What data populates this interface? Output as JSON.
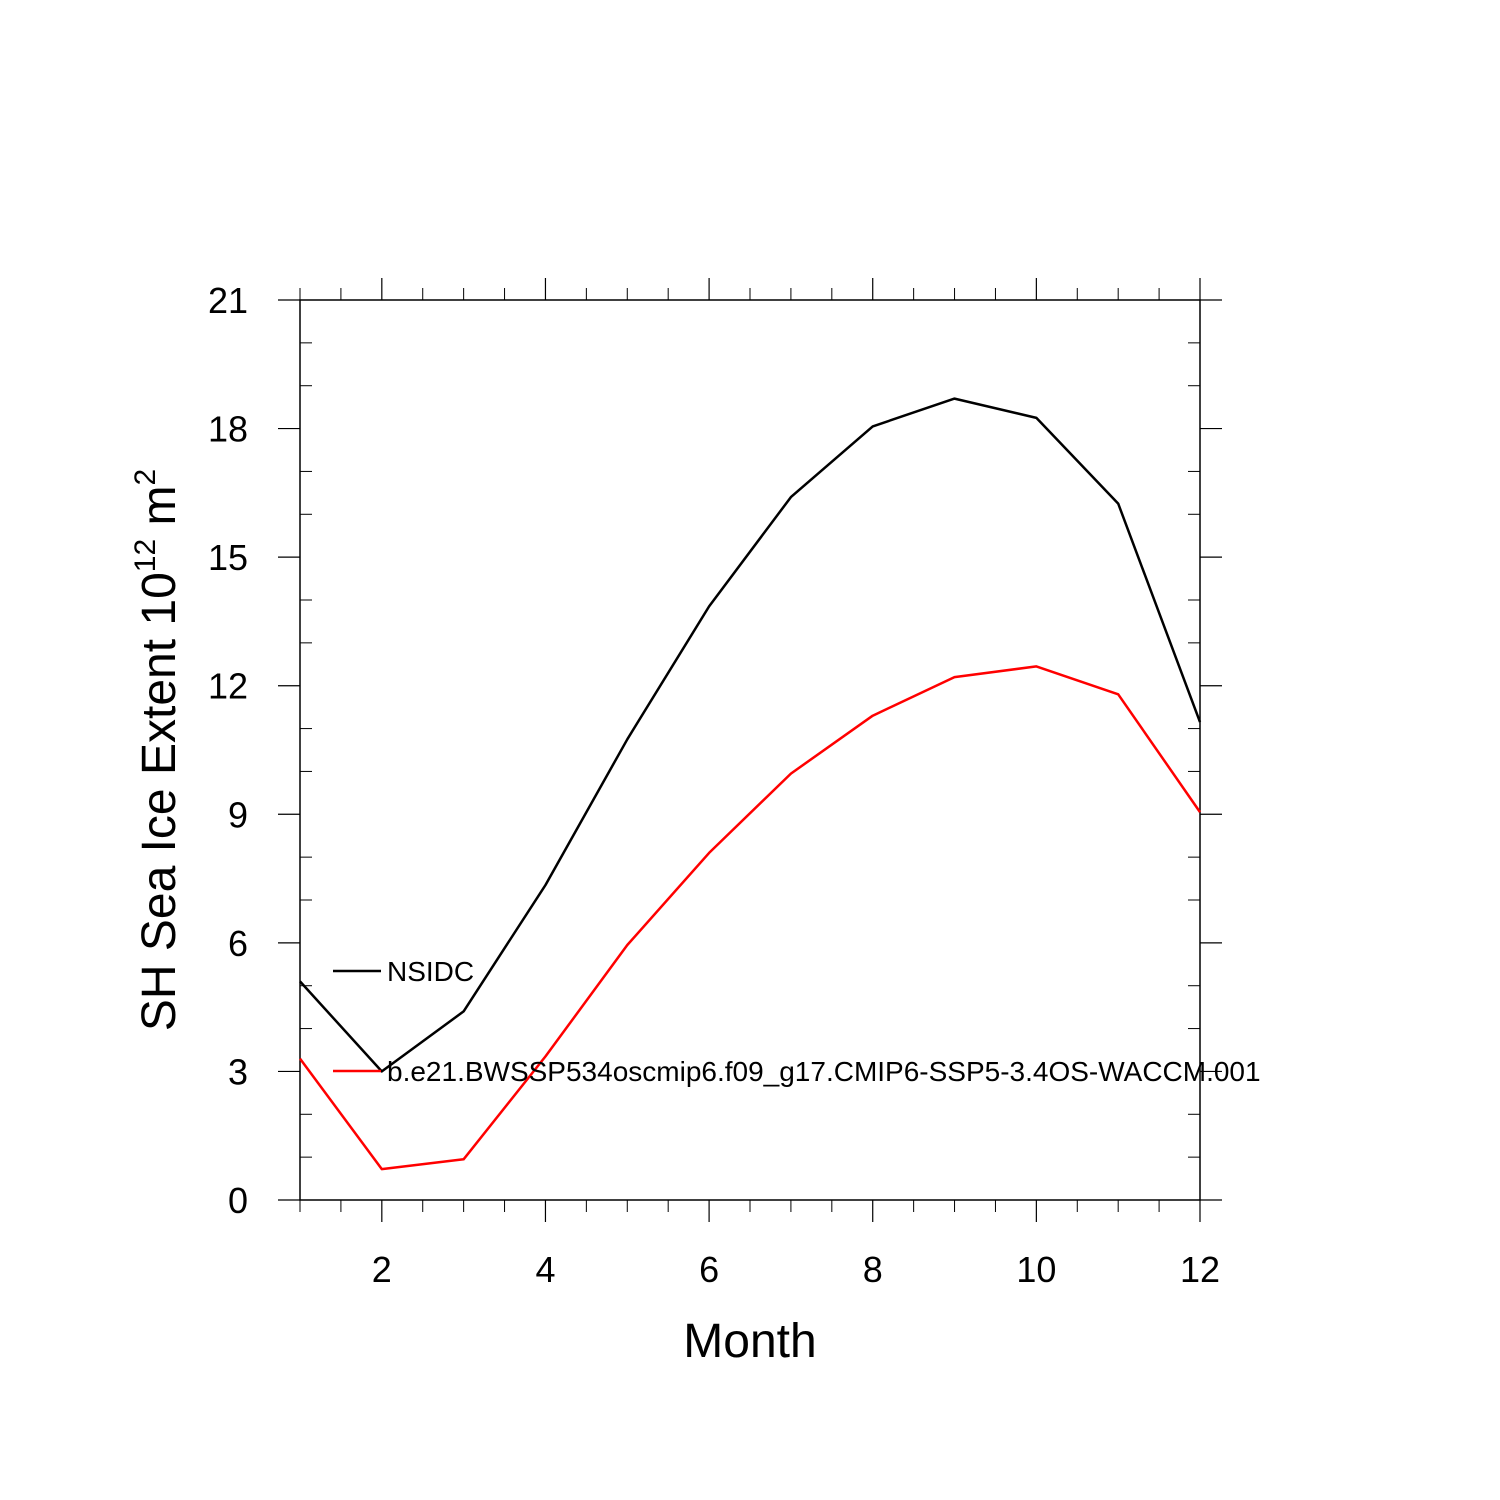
{
  "chart_data": {
    "type": "line",
    "title": "",
    "xlabel": "Month",
    "ylabel": {
      "main": "SH Sea Ice Extent 10",
      "exponent": "12",
      "unit": " m",
      "unit_exponent": "2"
    },
    "xlim": [
      1,
      12
    ],
    "ylim": [
      0,
      21
    ],
    "x_ticks": [
      2,
      4,
      6,
      8,
      10,
      12
    ],
    "y_ticks": [
      0,
      3,
      6,
      9,
      12,
      15,
      18,
      21
    ],
    "x_minor_step": 0.5,
    "y_minor_step": 1,
    "grid": false,
    "legend_placement": "inside-left",
    "x": [
      1,
      2,
      3,
      4,
      5,
      6,
      7,
      8,
      9,
      10,
      11,
      12
    ],
    "series": [
      {
        "name": "NSIDC",
        "color": "#000000",
        "values": [
          5.1,
          3.0,
          4.4,
          7.35,
          10.75,
          13.85,
          16.4,
          18.05,
          18.7,
          18.25,
          16.25,
          11.15
        ]
      },
      {
        "name": "b.e21.BWSSP534oscmip6.f09_g17.CMIP6-SSP5-3.4OS-WACCM.001",
        "color": "#ff0000",
        "values": [
          3.3,
          0.72,
          0.95,
          3.35,
          5.95,
          8.1,
          9.95,
          11.3,
          12.2,
          12.45,
          11.8,
          9.05
        ]
      }
    ]
  }
}
